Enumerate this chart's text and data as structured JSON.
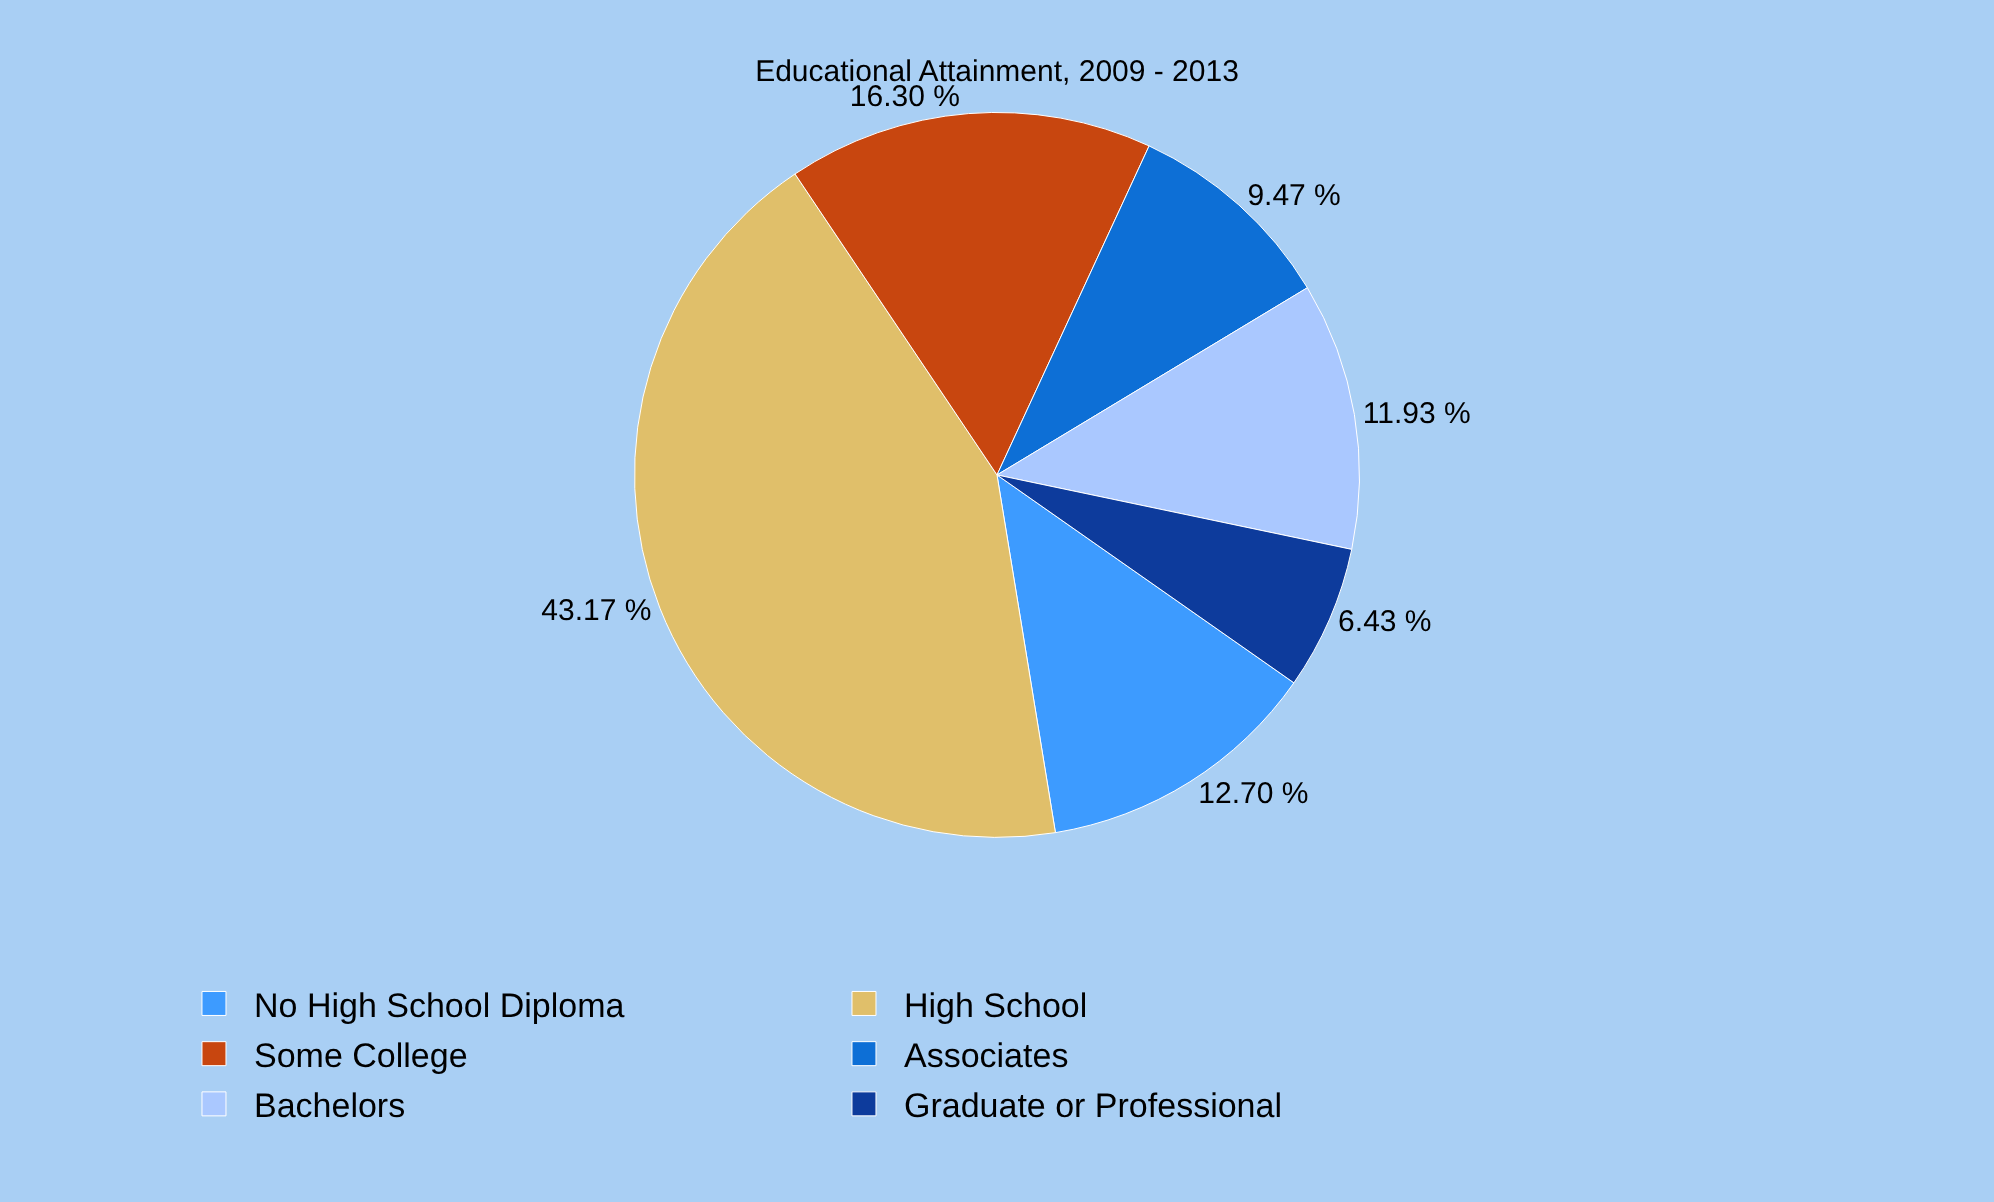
{
  "chart_data": {
    "type": "pie",
    "title": "Educational Attainment, 2009 - 2013",
    "categories": [
      "No High School Diploma",
      "High School",
      "Some College",
      "Associates",
      "Bachelors",
      "Graduate or Professional"
    ],
    "values": [
      12.7,
      43.17,
      16.3,
      9.47,
      11.93,
      6.43
    ],
    "value_labels": [
      "12.70 %",
      "43.17 %",
      "16.30 %",
      "9.47 %",
      "11.93 %",
      "6.43 %"
    ],
    "colors": [
      "#3d9bff",
      "#e0bf6a",
      "#c8460f",
      "#0d6fd6",
      "#aac8ff",
      "#0d3b9c"
    ],
    "legend": "bottom"
  }
}
